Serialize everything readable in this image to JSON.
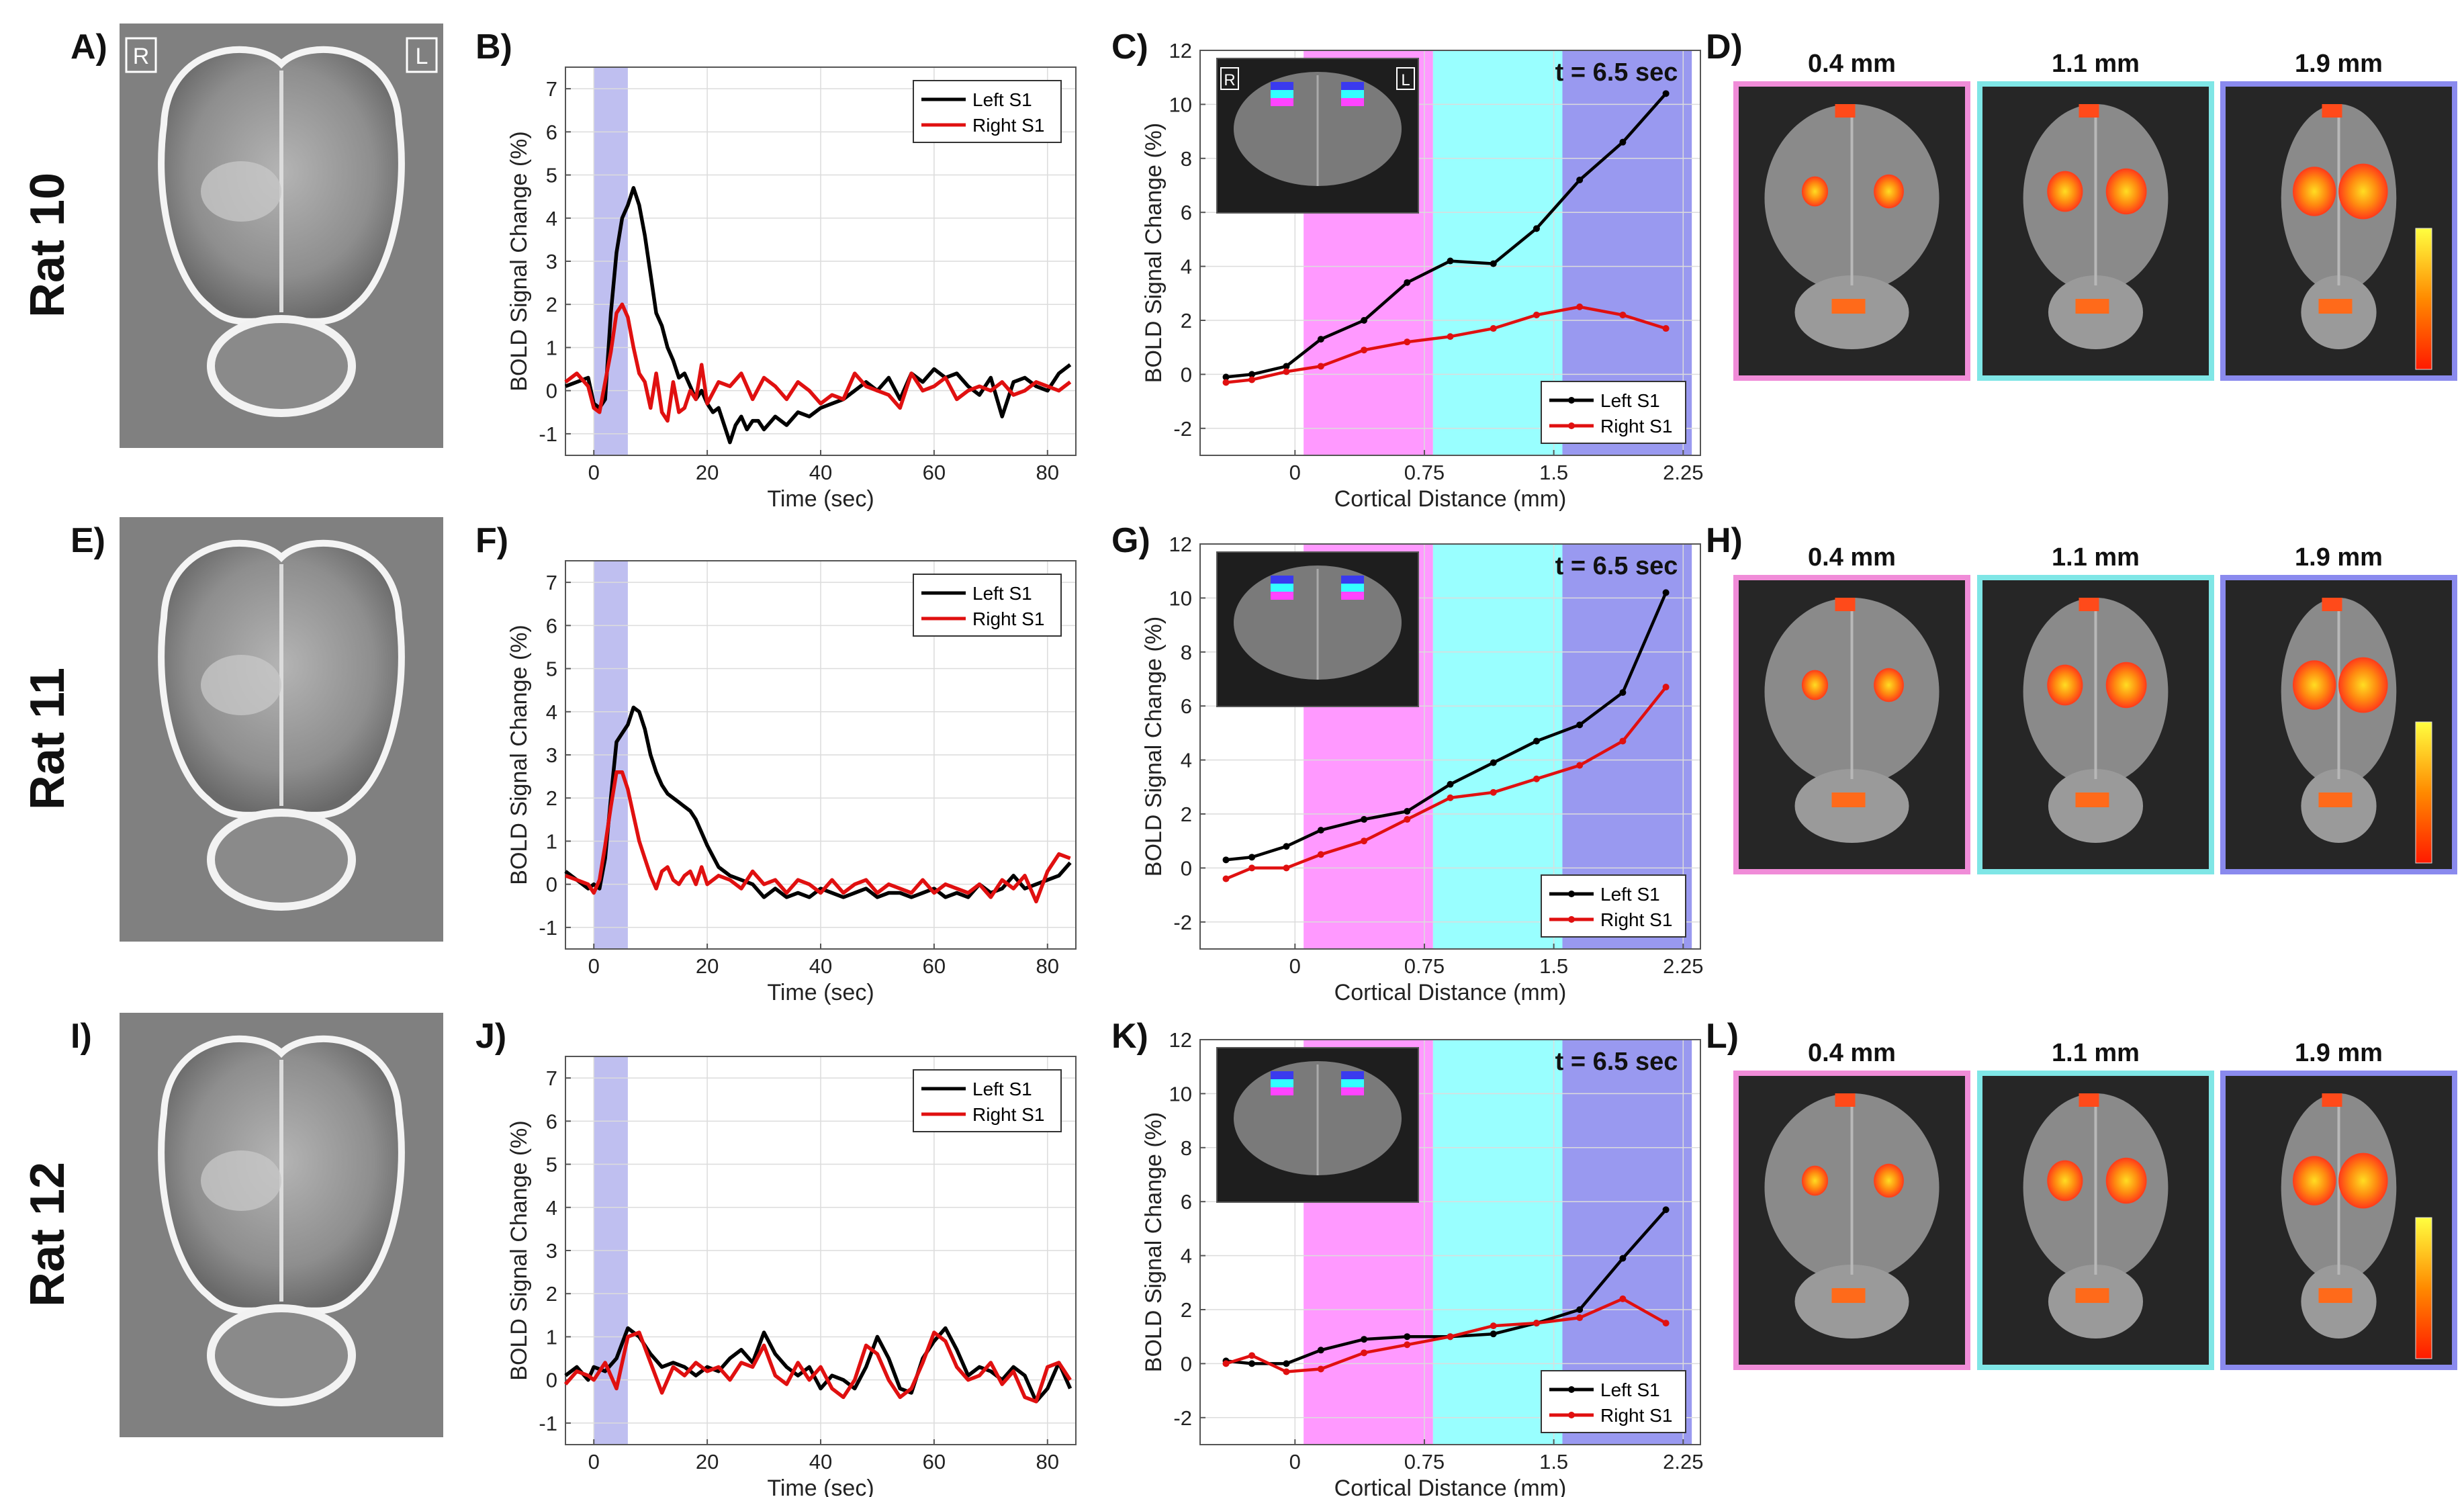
{
  "figure": {
    "rows": [
      {
        "rat_label": "Rat 10",
        "labels": {
          "img": "A)",
          "time": "B)",
          "depth": "C)",
          "slices": "D)"
        },
        "has_hemi_labels": true
      },
      {
        "rat_label": "Rat 11",
        "labels": {
          "img": "E)",
          "time": "F)",
          "depth": "G)",
          "slices": "H)"
        },
        "has_hemi_labels": false
      },
      {
        "rat_label": "Rat 12",
        "labels": {
          "img": "I)",
          "time": "J)",
          "depth": "K)",
          "slices": "L)"
        },
        "has_hemi_labels": false
      }
    ],
    "hemisphere_labels": {
      "right": "R",
      "left": "L"
    },
    "depth_titles": [
      "0.4 mm",
      "1.1 mm",
      "1.9 mm"
    ],
    "time_annotation": "t = 6.5 sec",
    "colors": {
      "left_s1": "#000000",
      "right_s1": "#e01010",
      "stim_band": "#b8b8ee",
      "layer1": "#ff99ff",
      "layer2": "#99ffff",
      "layer3": "#9999f0",
      "frame1": "#f08cd8",
      "frame2": "#7fe6e6",
      "frame3": "#8a8aee",
      "activation_hot": "#ff3a1a",
      "activation_peak": "#ffdd22"
    },
    "icons": [
      "brain-map-image",
      "coronal-slice-inset",
      "axial-slice-image",
      "colorbar"
    ]
  },
  "chart_data": [
    {
      "id": "B",
      "type": "line",
      "xlabel": "Time (sec)",
      "ylabel": "BOLD Signal Change (%)",
      "xlim": [
        -5,
        85
      ],
      "ylim": [
        -1.5,
        7.5
      ],
      "xticks": [
        0,
        20,
        40,
        60,
        80
      ],
      "yticks": [
        -1,
        0,
        1,
        2,
        3,
        4,
        5,
        6,
        7
      ],
      "stim_window": [
        0,
        6
      ],
      "legend": "top-right",
      "series": [
        {
          "name": "Left S1",
          "x": [
            -5,
            -3,
            -1,
            0,
            1,
            2,
            3,
            4,
            5,
            6,
            7,
            8,
            9,
            10,
            11,
            12,
            13,
            14,
            15,
            16,
            17,
            18,
            19,
            20,
            21,
            22,
            23,
            24,
            25,
            26,
            27,
            28,
            29,
            30,
            32,
            34,
            36,
            38,
            40,
            42,
            44,
            46,
            48,
            50,
            52,
            54,
            56,
            58,
            60,
            62,
            64,
            66,
            68,
            70,
            72,
            74,
            76,
            78,
            80,
            82,
            84
          ],
          "y": [
            0.1,
            0.2,
            0.3,
            -0.3,
            -0.4,
            -0.2,
            1.8,
            3.2,
            4.0,
            4.3,
            4.7,
            4.3,
            3.6,
            2.7,
            1.8,
            1.5,
            1.0,
            0.7,
            0.3,
            0.4,
            0.1,
            -0.2,
            0.0,
            -0.3,
            -0.5,
            -0.4,
            -0.8,
            -1.2,
            -0.8,
            -0.6,
            -0.9,
            -0.7,
            -0.7,
            -0.9,
            -0.6,
            -0.8,
            -0.5,
            -0.6,
            -0.4,
            -0.3,
            -0.2,
            0.0,
            0.2,
            0.0,
            0.3,
            -0.2,
            0.4,
            0.2,
            0.5,
            0.3,
            0.4,
            0.1,
            -0.1,
            0.3,
            -0.6,
            0.2,
            0.3,
            0.1,
            0.0,
            0.4,
            0.6
          ]
        },
        {
          "name": "Right S1",
          "x": [
            -5,
            -3,
            -1,
            0,
            1,
            2,
            3,
            4,
            5,
            6,
            7,
            8,
            9,
            10,
            11,
            12,
            13,
            14,
            15,
            16,
            17,
            18,
            19,
            20,
            22,
            24,
            26,
            28,
            30,
            32,
            34,
            36,
            38,
            40,
            42,
            44,
            46,
            48,
            50,
            52,
            54,
            56,
            58,
            60,
            62,
            64,
            66,
            68,
            70,
            72,
            74,
            76,
            78,
            80,
            82,
            84
          ],
          "y": [
            0.2,
            0.4,
            0.1,
            -0.4,
            -0.5,
            0.2,
            0.9,
            1.8,
            2.0,
            1.7,
            1.0,
            0.4,
            0.2,
            -0.4,
            0.4,
            -0.5,
            -0.7,
            0.2,
            -0.5,
            -0.4,
            0.0,
            -0.2,
            0.6,
            -0.3,
            0.2,
            0.1,
            0.4,
            -0.2,
            0.3,
            0.1,
            -0.2,
            0.2,
            0.0,
            -0.3,
            -0.1,
            -0.2,
            0.4,
            0.1,
            0.0,
            -0.1,
            -0.4,
            0.4,
            0.0,
            0.1,
            0.3,
            -0.2,
            0.0,
            0.1,
            0.0,
            0.2,
            -0.1,
            0.0,
            0.2,
            0.1,
            0.0,
            0.2
          ]
        }
      ]
    },
    {
      "id": "C",
      "type": "line",
      "xlabel": "Cortical Distance (mm)",
      "ylabel": "BOLD Signal Change (%)",
      "xlim": [
        -0.55,
        2.35
      ],
      "ylim": [
        -3,
        12
      ],
      "xticks": [
        0,
        0.75,
        1.5,
        2.25
      ],
      "xtick_labels": [
        "0",
        "0.75",
        "1.5",
        "2.25"
      ],
      "yticks": [
        -2,
        0,
        2,
        4,
        6,
        8,
        10,
        12
      ],
      "legend": "bottom-right",
      "layer_bands": [
        [
          0.05,
          0.8
        ],
        [
          0.8,
          1.55
        ],
        [
          1.55,
          2.3
        ]
      ],
      "series": [
        {
          "name": "Left S1",
          "x": [
            -0.4,
            -0.25,
            -0.05,
            0.15,
            0.4,
            0.65,
            0.9,
            1.15,
            1.4,
            1.65,
            1.9,
            2.15
          ],
          "y": [
            -0.1,
            0.0,
            0.3,
            1.3,
            2.0,
            3.4,
            4.2,
            4.1,
            5.4,
            7.2,
            8.6,
            10.4
          ]
        },
        {
          "name": "Right S1",
          "x": [
            -0.4,
            -0.25,
            -0.05,
            0.15,
            0.4,
            0.65,
            0.9,
            1.15,
            1.4,
            1.65,
            1.9,
            2.15
          ],
          "y": [
            -0.3,
            -0.2,
            0.1,
            0.3,
            0.9,
            1.2,
            1.4,
            1.7,
            2.2,
            2.5,
            2.2,
            1.7
          ]
        }
      ]
    },
    {
      "id": "F",
      "type": "line",
      "xlabel": "Time (sec)",
      "ylabel": "BOLD Signal Change (%)",
      "xlim": [
        -5,
        85
      ],
      "ylim": [
        -1.5,
        7.5
      ],
      "xticks": [
        0,
        20,
        40,
        60,
        80
      ],
      "yticks": [
        -1,
        0,
        1,
        2,
        3,
        4,
        5,
        6,
        7
      ],
      "stim_window": [
        0,
        6
      ],
      "legend": "top-right",
      "series": [
        {
          "name": "Left S1",
          "x": [
            -5,
            -3,
            -1,
            0,
            1,
            2,
            3,
            4,
            5,
            6,
            7,
            8,
            9,
            10,
            11,
            12,
            13,
            14,
            15,
            16,
            17,
            18,
            19,
            20,
            22,
            24,
            26,
            28,
            30,
            32,
            34,
            36,
            38,
            40,
            42,
            44,
            46,
            48,
            50,
            52,
            54,
            56,
            58,
            60,
            62,
            64,
            66,
            68,
            70,
            72,
            74,
            76,
            78,
            80,
            82,
            84
          ],
          "y": [
            0.3,
            0.1,
            -0.1,
            0.0,
            -0.1,
            0.6,
            2.0,
            3.3,
            3.5,
            3.7,
            4.1,
            4.0,
            3.6,
            3.0,
            2.6,
            2.3,
            2.1,
            2.0,
            1.9,
            1.8,
            1.7,
            1.5,
            1.2,
            0.9,
            0.4,
            0.2,
            0.1,
            0.0,
            -0.3,
            -0.1,
            -0.3,
            -0.2,
            -0.3,
            -0.1,
            -0.2,
            -0.3,
            -0.2,
            -0.1,
            -0.3,
            -0.2,
            -0.2,
            -0.3,
            -0.2,
            -0.1,
            -0.3,
            -0.2,
            -0.3,
            0.0,
            -0.2,
            -0.1,
            0.2,
            -0.1,
            0.0,
            0.1,
            0.2,
            0.5
          ]
        },
        {
          "name": "Right S1",
          "x": [
            -5,
            -3,
            -1,
            0,
            1,
            2,
            3,
            4,
            5,
            6,
            7,
            8,
            9,
            10,
            11,
            12,
            13,
            14,
            15,
            16,
            17,
            18,
            19,
            20,
            22,
            24,
            26,
            28,
            30,
            32,
            34,
            36,
            38,
            40,
            42,
            44,
            46,
            48,
            50,
            52,
            54,
            56,
            58,
            60,
            62,
            64,
            66,
            68,
            70,
            72,
            74,
            76,
            78,
            80,
            82,
            84
          ],
          "y": [
            0.2,
            0.1,
            0.0,
            -0.2,
            0.1,
            0.9,
            1.8,
            2.6,
            2.6,
            2.2,
            1.6,
            1.0,
            0.6,
            0.2,
            -0.1,
            0.3,
            0.4,
            0.1,
            0.0,
            0.2,
            0.3,
            0.0,
            0.4,
            0.0,
            0.2,
            0.1,
            -0.1,
            0.3,
            0.0,
            0.1,
            -0.2,
            0.1,
            0.0,
            -0.2,
            0.1,
            -0.2,
            0.0,
            0.1,
            -0.2,
            0.0,
            -0.1,
            -0.2,
            0.1,
            -0.2,
            0.0,
            -0.1,
            -0.2,
            0.0,
            -0.3,
            0.1,
            -0.1,
            0.2,
            -0.4,
            0.3,
            0.7,
            0.6
          ]
        }
      ]
    },
    {
      "id": "G",
      "type": "line",
      "xlabel": "Cortical Distance (mm)",
      "ylabel": "BOLD Signal Change (%)",
      "xlim": [
        -0.55,
        2.35
      ],
      "ylim": [
        -3,
        12
      ],
      "xticks": [
        0,
        0.75,
        1.5,
        2.25
      ],
      "xtick_labels": [
        "0",
        "0.75",
        "1.5",
        "2.25"
      ],
      "yticks": [
        -2,
        0,
        2,
        4,
        6,
        8,
        10,
        12
      ],
      "legend": "bottom-right",
      "layer_bands": [
        [
          0.05,
          0.8
        ],
        [
          0.8,
          1.55
        ],
        [
          1.55,
          2.3
        ]
      ],
      "series": [
        {
          "name": "Left S1",
          "x": [
            -0.4,
            -0.25,
            -0.05,
            0.15,
            0.4,
            0.65,
            0.9,
            1.15,
            1.4,
            1.65,
            1.9,
            2.15
          ],
          "y": [
            0.3,
            0.4,
            0.8,
            1.4,
            1.8,
            2.1,
            3.1,
            3.9,
            4.7,
            5.3,
            6.5,
            10.2
          ]
        },
        {
          "name": "Right S1",
          "x": [
            -0.4,
            -0.25,
            -0.05,
            0.15,
            0.4,
            0.65,
            0.9,
            1.15,
            1.4,
            1.65,
            1.9,
            2.15
          ],
          "y": [
            -0.4,
            0.0,
            0.0,
            0.5,
            1.0,
            1.8,
            2.6,
            2.8,
            3.3,
            3.8,
            4.7,
            6.7
          ]
        }
      ]
    },
    {
      "id": "J",
      "type": "line",
      "xlabel": "Time (sec)",
      "ylabel": "BOLD Signal Change (%)",
      "xlim": [
        -5,
        85
      ],
      "ylim": [
        -1.5,
        7.5
      ],
      "xticks": [
        0,
        20,
        40,
        60,
        80
      ],
      "yticks": [
        -1,
        0,
        1,
        2,
        3,
        4,
        5,
        6,
        7
      ],
      "stim_window": [
        0,
        6
      ],
      "legend": "top-right",
      "series": [
        {
          "name": "Left S1",
          "x": [
            -5,
            -3,
            -1,
            0,
            2,
            4,
            6,
            8,
            10,
            12,
            14,
            16,
            18,
            20,
            22,
            24,
            26,
            28,
            30,
            32,
            34,
            36,
            38,
            40,
            42,
            44,
            46,
            48,
            50,
            52,
            54,
            56,
            58,
            60,
            62,
            64,
            66,
            68,
            70,
            72,
            74,
            76,
            78,
            80,
            82,
            84
          ],
          "y": [
            0.1,
            0.3,
            0.0,
            0.3,
            0.2,
            0.5,
            1.2,
            1.0,
            0.6,
            0.3,
            0.4,
            0.3,
            0.1,
            0.3,
            0.2,
            0.5,
            0.7,
            0.4,
            1.1,
            0.6,
            0.3,
            0.1,
            0.3,
            -0.2,
            0.1,
            0.0,
            -0.2,
            0.3,
            1.0,
            0.5,
            -0.2,
            -0.3,
            0.5,
            0.9,
            1.2,
            0.7,
            0.1,
            0.3,
            0.2,
            0.0,
            0.3,
            0.1,
            -0.5,
            -0.2,
            0.4,
            -0.2
          ]
        },
        {
          "name": "Right S1",
          "x": [
            -5,
            -3,
            -1,
            0,
            2,
            4,
            6,
            8,
            10,
            12,
            14,
            16,
            18,
            20,
            22,
            24,
            26,
            28,
            30,
            32,
            34,
            36,
            38,
            40,
            42,
            44,
            46,
            48,
            50,
            52,
            54,
            56,
            58,
            60,
            62,
            64,
            66,
            68,
            70,
            72,
            74,
            76,
            78,
            80,
            82,
            84
          ],
          "y": [
            -0.1,
            0.2,
            0.1,
            0.0,
            0.4,
            -0.2,
            1.0,
            1.1,
            0.4,
            -0.3,
            0.3,
            0.1,
            0.4,
            0.2,
            0.3,
            0.0,
            0.4,
            0.3,
            0.8,
            0.1,
            -0.1,
            0.4,
            0.0,
            0.3,
            -0.2,
            -0.4,
            0.0,
            0.8,
            0.6,
            0.0,
            -0.4,
            -0.2,
            0.4,
            1.1,
            0.9,
            0.3,
            0.0,
            0.1,
            0.4,
            -0.1,
            0.2,
            -0.4,
            -0.5,
            0.3,
            0.4,
            0.0
          ]
        }
      ]
    },
    {
      "id": "K",
      "type": "line",
      "xlabel": "Cortical Distance (mm)",
      "ylabel": "BOLD Signal Change (%)",
      "xlim": [
        -0.55,
        2.35
      ],
      "ylim": [
        -3,
        12
      ],
      "xticks": [
        0,
        0.75,
        1.5,
        2.25
      ],
      "xtick_labels": [
        "0",
        "0.75",
        "1.5",
        "2.25"
      ],
      "yticks": [
        -2,
        0,
        2,
        4,
        6,
        8,
        10,
        12
      ],
      "legend": "bottom-right",
      "layer_bands": [
        [
          0.05,
          0.8
        ],
        [
          0.8,
          1.55
        ],
        [
          1.55,
          2.3
        ]
      ],
      "series": [
        {
          "name": "Left S1",
          "x": [
            -0.4,
            -0.25,
            -0.05,
            0.15,
            0.4,
            0.65,
            0.9,
            1.15,
            1.4,
            1.65,
            1.9,
            2.15
          ],
          "y": [
            0.1,
            0.0,
            0.0,
            0.5,
            0.9,
            1.0,
            1.0,
            1.1,
            1.5,
            2.0,
            3.9,
            5.7
          ]
        },
        {
          "name": "Right S1",
          "x": [
            -0.4,
            -0.25,
            -0.05,
            0.15,
            0.4,
            0.65,
            0.9,
            1.15,
            1.4,
            1.65,
            1.9,
            2.15
          ],
          "y": [
            0.0,
            0.3,
            -0.3,
            -0.2,
            0.4,
            0.7,
            1.0,
            1.4,
            1.5,
            1.7,
            2.4,
            1.5
          ]
        }
      ]
    }
  ]
}
